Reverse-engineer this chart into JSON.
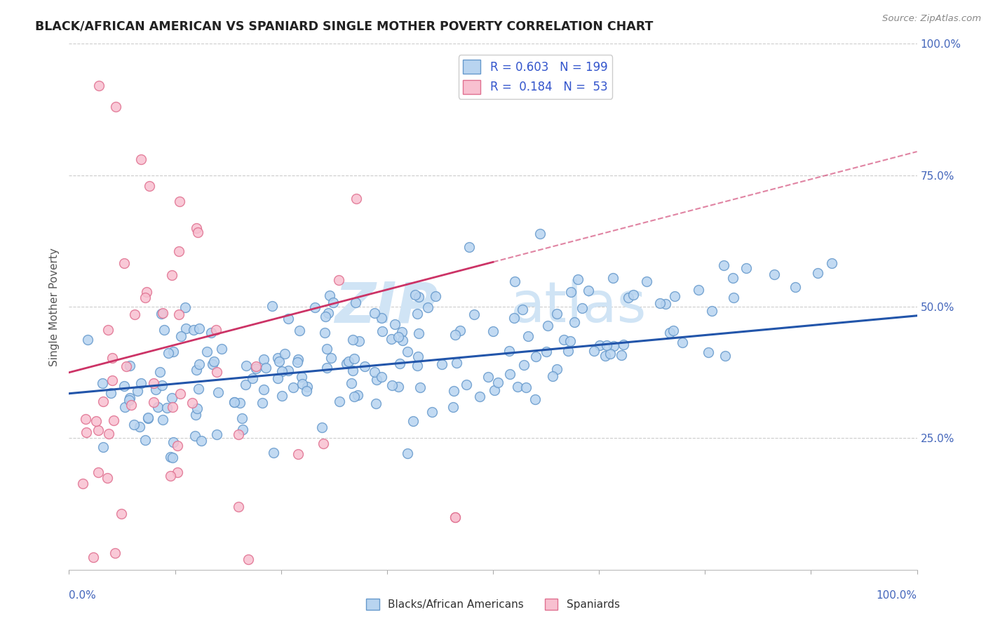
{
  "title": "BLACK/AFRICAN AMERICAN VS SPANIARD SINGLE MOTHER POVERTY CORRELATION CHART",
  "source": "Source: ZipAtlas.com",
  "ylabel": "Single Mother Poverty",
  "blue_scatter_fill": "#b8d4f0",
  "blue_scatter_edge": "#6699cc",
  "pink_scatter_fill": "#f8c0d0",
  "pink_scatter_edge": "#e07090",
  "blue_line_color": "#2255aa",
  "pink_line_color": "#cc3366",
  "r_value_blue": 0.603,
  "n_blue": 199,
  "r_value_pink": 0.184,
  "n_pink": 53,
  "background_color": "#ffffff",
  "grid_color": "#cccccc",
  "ytick_color": "#4466bb",
  "xtick_color": "#4466bb",
  "watermark_color": "#d0e4f5",
  "legend_text_color": "#3355cc"
}
